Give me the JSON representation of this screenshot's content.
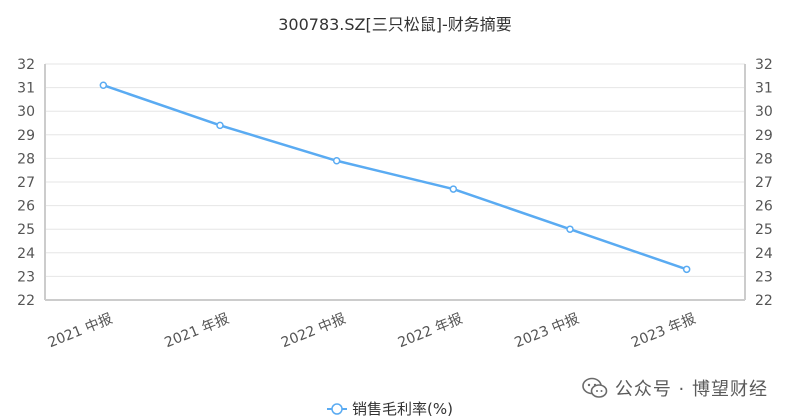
{
  "chart_data": {
    "type": "line",
    "title": "300783.SZ[三只松鼠]-财务摘要",
    "categories": [
      "2021 中报",
      "2021 年报",
      "2022 中报",
      "2022 年报",
      "2023 中报",
      "2023 年报"
    ],
    "series": [
      {
        "name": "销售毛利率(%)",
        "values": [
          31.1,
          29.4,
          27.9,
          26.7,
          25.0,
          23.3
        ],
        "color": "#5aabf2"
      }
    ],
    "ylim": [
      22,
      32
    ],
    "yticks": [
      22,
      23,
      24,
      25,
      26,
      27,
      28,
      29,
      30,
      31,
      32
    ],
    "secondary_axis": true,
    "grid": true,
    "legend": "bottom-center"
  },
  "watermark": {
    "text": "公众号 · 博望财经",
    "icon": "wechat-icon"
  }
}
